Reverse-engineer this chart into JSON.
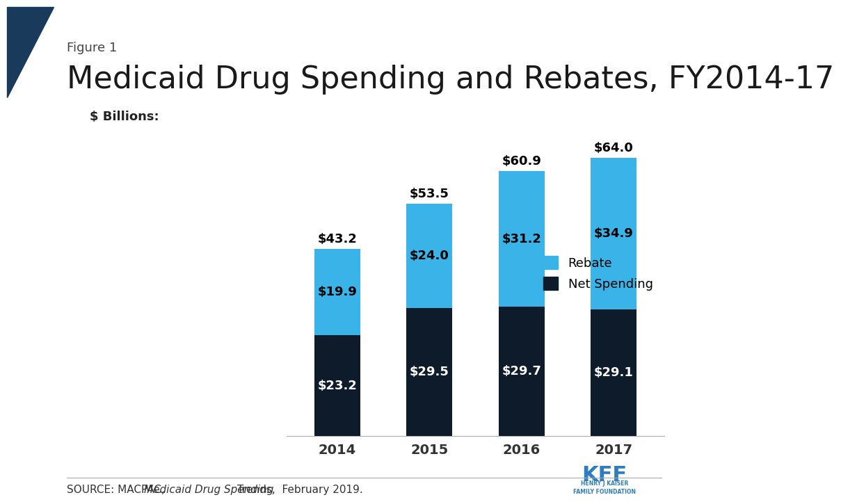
{
  "title": "Medicaid Drug Spending and Rebates, FY2014-17",
  "figure_label": "Figure 1",
  "ylabel": "$ Billions:",
  "categories": [
    "2014",
    "2015",
    "2016",
    "2017"
  ],
  "net_spending": [
    23.2,
    29.5,
    29.7,
    29.1
  ],
  "rebate": [
    19.9,
    24.0,
    31.2,
    34.9
  ],
  "totals": [
    43.2,
    53.5,
    60.9,
    64.0
  ],
  "color_net": "#0d1b2a",
  "color_rebate": "#3ab4e8",
  "background_color": "#ffffff",
  "legend_labels": [
    "Rebate",
    "Net Spending"
  ],
  "source_text": "SOURCE: MACPAC, ",
  "source_italic": "Medicaid Drug Spending",
  "source_text2": " Trends,  February 2019.",
  "kff_color": "#2e7dc0",
  "title_fontsize": 32,
  "figure_label_fontsize": 13,
  "ylabel_fontsize": 13,
  "bar_label_fontsize": 13,
  "total_label_fontsize": 13,
  "legend_fontsize": 13,
  "source_fontsize": 11,
  "bar_width": 0.5,
  "ylim": [
    0,
    72
  ]
}
